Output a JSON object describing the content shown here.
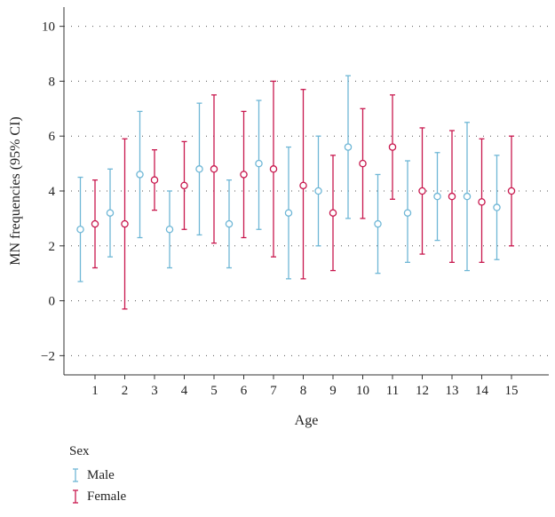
{
  "chart_data": {
    "type": "errorbar",
    "xlabel": "Age",
    "ylabel": "MN frequencies (95% CI)",
    "ylim": [
      -2.7,
      10.7
    ],
    "yticks": [
      "−2",
      "0",
      "2",
      "4",
      "6",
      "8",
      "10"
    ],
    "ytick_values": [
      -2,
      0,
      2,
      4,
      6,
      8,
      10
    ],
    "categories": [
      "1",
      "2",
      "3",
      "4",
      "5",
      "6",
      "7",
      "8",
      "9",
      "10",
      "11",
      "12",
      "13",
      "14",
      "15"
    ],
    "grid": "dotted-horizontal",
    "legend_title": "Sex",
    "legend_position": "bottom-left",
    "series": [
      {
        "name": "Male",
        "color": "#6fb7d6",
        "means": [
          2.6,
          3.2,
          4.6,
          2.6,
          4.8,
          2.8,
          5.0,
          3.2,
          4.0,
          5.6,
          2.8,
          3.2,
          3.8,
          3.8,
          3.4
        ],
        "lower": [
          0.7,
          1.6,
          2.3,
          1.2,
          2.4,
          1.2,
          2.6,
          0.8,
          2.0,
          3.0,
          1.0,
          1.4,
          2.2,
          1.1,
          1.5
        ],
        "upper": [
          4.5,
          4.8,
          6.9,
          4.0,
          7.2,
          4.4,
          7.3,
          5.6,
          6.0,
          8.2,
          4.6,
          5.1,
          5.4,
          6.5,
          5.3
        ]
      },
      {
        "name": "Female",
        "color": "#c8184e",
        "means": [
          2.8,
          2.8,
          4.4,
          4.2,
          4.8,
          4.6,
          4.8,
          4.2,
          3.2,
          5.0,
          5.6,
          4.0,
          3.8,
          3.6,
          4.0
        ],
        "lower": [
          1.2,
          -0.3,
          3.3,
          2.6,
          2.1,
          2.3,
          1.6,
          0.8,
          1.1,
          3.0,
          3.7,
          1.7,
          1.4,
          1.4,
          2.0
        ],
        "upper": [
          4.4,
          5.9,
          5.5,
          5.8,
          7.5,
          6.9,
          8.0,
          7.7,
          5.3,
          7.0,
          7.5,
          6.3,
          6.2,
          5.9,
          6.0
        ]
      }
    ]
  }
}
